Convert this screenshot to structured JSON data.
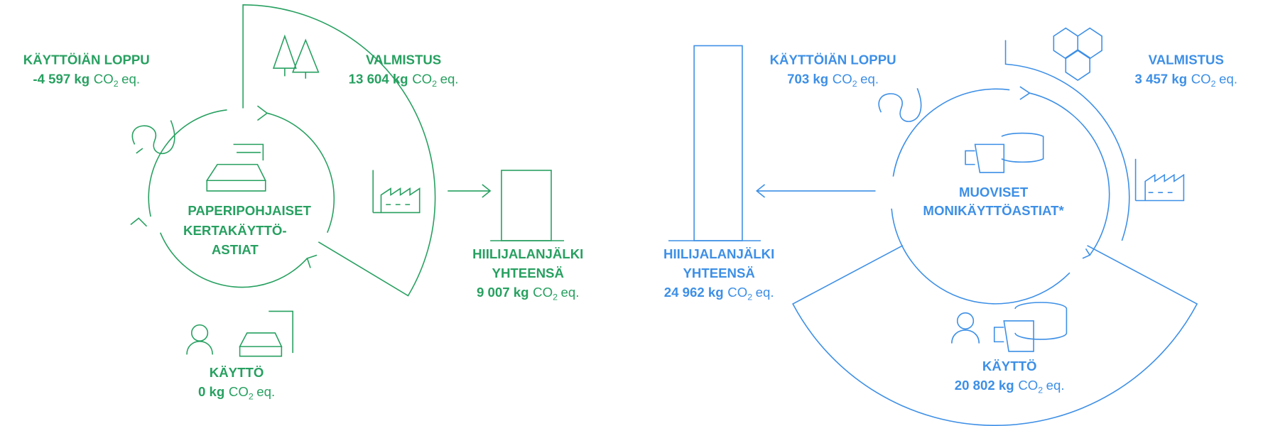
{
  "panels": [
    {
      "title": [
        "PAPERIPOHJAISET",
        "KERTAKÄYTTÖ-",
        "ASTIAT"
      ],
      "stages": [
        {
          "label": "KÄYTTÖIÄN LOPPU",
          "value": "-4 597 kg"
        },
        {
          "label": "VALMISTUS",
          "value": "13 604 kg"
        },
        {
          "label": "KÄYTTÖ",
          "value": "0 kg"
        }
      ],
      "total": {
        "label": [
          "HIILIJALANJÄLKI",
          "YHTEENSÄ"
        ],
        "value": 9007,
        "value_label": "9 007 kg"
      }
    },
    {
      "title": [
        "MUOVISET",
        "MONIKÄYTTÖASTIAT*"
      ],
      "stages": [
        {
          "label": "KÄYTTÖIÄN LOPPU",
          "value": "703 kg"
        },
        {
          "label": "VALMISTUS",
          "value": "3 457 kg"
        },
        {
          "label": "KÄYTTÖ",
          "value": "20 802 kg"
        }
      ],
      "total": {
        "label": [
          "HIILIJALANJÄLKI",
          "YHTEENSÄ"
        ],
        "value": 24962,
        "value_label": "24 962 kg"
      }
    }
  ],
  "unit": {
    "base": "CO",
    "sub": "2",
    "suffix": "eq."
  }
}
